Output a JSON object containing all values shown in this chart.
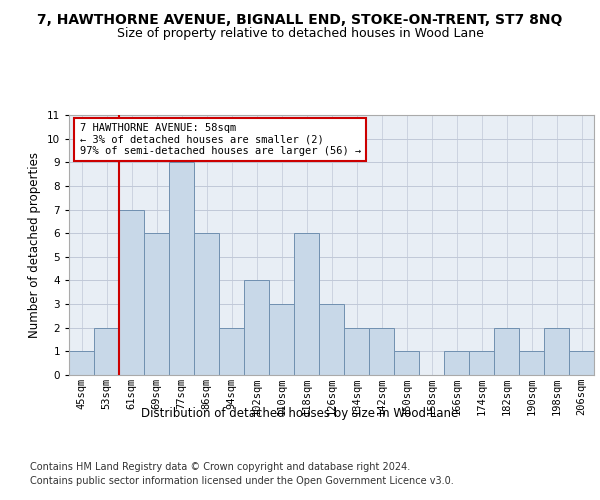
{
  "title": "7, HAWTHORNE AVENUE, BIGNALL END, STOKE-ON-TRENT, ST7 8NQ",
  "subtitle": "Size of property relative to detached houses in Wood Lane",
  "xlabel_bottom": "Distribution of detached houses by size in Wood Lane",
  "ylabel": "Number of detached properties",
  "categories": [
    "45sqm",
    "53sqm",
    "61sqm",
    "69sqm",
    "77sqm",
    "86sqm",
    "94sqm",
    "102sqm",
    "110sqm",
    "118sqm",
    "126sqm",
    "134sqm",
    "142sqm",
    "150sqm",
    "158sqm",
    "166sqm",
    "174sqm",
    "182sqm",
    "190sqm",
    "198sqm",
    "206sqm"
  ],
  "values": [
    1,
    2,
    7,
    6,
    9,
    6,
    2,
    4,
    3,
    6,
    3,
    2,
    2,
    1,
    0,
    1,
    1,
    2,
    1,
    2,
    1
  ],
  "bar_color": "#c8d8e8",
  "bar_edge_color": "#7090b0",
  "highlight_line_color": "#cc0000",
  "annotation_text": "7 HAWTHORNE AVENUE: 58sqm\n← 3% of detached houses are smaller (2)\n97% of semi-detached houses are larger (56) →",
  "annotation_box_color": "#ffffff",
  "annotation_box_edge_color": "#cc0000",
  "ylim": [
    0,
    11
  ],
  "yticks": [
    0,
    1,
    2,
    3,
    4,
    5,
    6,
    7,
    8,
    9,
    10,
    11
  ],
  "grid_color": "#c0c8d8",
  "background_color": "#e8eef5",
  "footer_line1": "Contains HM Land Registry data © Crown copyright and database right 2024.",
  "footer_line2": "Contains public sector information licensed under the Open Government Licence v3.0.",
  "title_fontsize": 10,
  "subtitle_fontsize": 9,
  "axis_label_fontsize": 8.5,
  "tick_fontsize": 7.5,
  "footer_fontsize": 7.0,
  "annotation_fontsize": 7.5
}
